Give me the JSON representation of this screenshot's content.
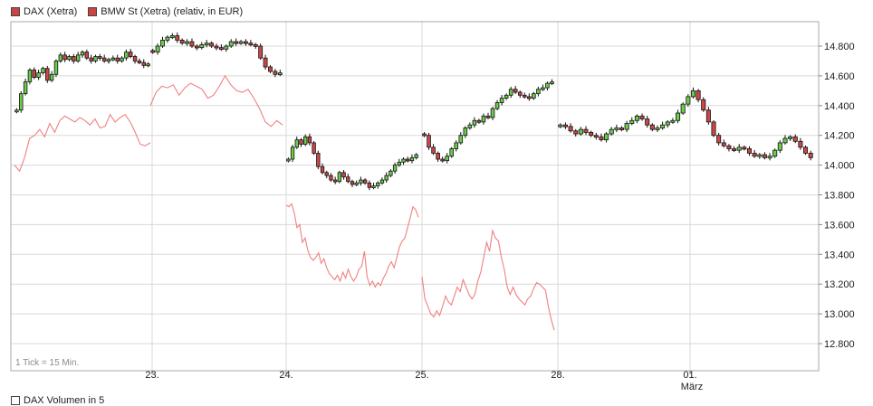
{
  "legend": [
    {
      "name": "DAX (Xetra)",
      "color": "#cc4444"
    },
    {
      "name": "BMW St (Xetra) (relativ, in EUR)",
      "color": "#cc4444"
    }
  ],
  "note": "1 Tick = 15 Min.",
  "bottom_legend": "DAX Volumen in 5",
  "colors": {
    "up": "#6ccc4c",
    "down": "#cc4848",
    "line": "#f08080",
    "grid": "#d8d8d8",
    "frame": "#aaaaaa"
  },
  "chart_data": {
    "type": "line",
    "title": "",
    "xlabel": "",
    "ylabel": "",
    "ylim": [
      12750,
      14950
    ],
    "yticks": [
      "14.800",
      "14.600",
      "14.400",
      "14.200",
      "14.000",
      "13.800",
      "13.600",
      "13.400",
      "13.200",
      "13.000",
      "12.800"
    ],
    "ytick_values": [
      14800,
      14600,
      14400,
      14200,
      14000,
      13800,
      13600,
      13400,
      13200,
      13000,
      12800
    ],
    "days": [
      {
        "label": "23.",
        "sublabel": ""
      },
      {
        "label": "24.",
        "sublabel": ""
      },
      {
        "label": "25.",
        "sublabel": ""
      },
      {
        "label": "28.",
        "sublabel": ""
      },
      {
        "label": "01.",
        "sublabel": "März"
      }
    ],
    "series": [
      {
        "name": "DAX (Xetra)",
        "type": "candlestick",
        "segments": [
          [
            14370,
            14480,
            14560,
            14640,
            14590,
            14620,
            14650,
            14570,
            14610,
            14700,
            14740,
            14710,
            14730,
            14700,
            14740,
            14760,
            14720,
            14700,
            14730,
            14720,
            14700,
            14710,
            14720,
            14700,
            14720,
            14760,
            14730,
            14700,
            14690,
            14670,
            14680
          ],
          [
            14760,
            14800,
            14840,
            14860,
            14870,
            14840,
            14820,
            14830,
            14800,
            14790,
            14810,
            14820,
            14800,
            14790,
            14780,
            14800,
            14830,
            14820,
            14830,
            14820,
            14810,
            14800,
            14720,
            14660,
            14630,
            14610,
            14620
          ],
          [
            14040,
            14120,
            14170,
            14140,
            14190,
            14150,
            14080,
            13990,
            13950,
            13930,
            13900,
            13890,
            13950,
            13920,
            13890,
            13870,
            13880,
            13900,
            13880,
            13850,
            13860,
            13880,
            13900,
            13930,
            13960,
            14000,
            14020,
            14040,
            14030,
            14050,
            14070
          ],
          [
            14200,
            14120,
            14080,
            14040,
            14030,
            14060,
            14110,
            14150,
            14200,
            14250,
            14270,
            14300,
            14290,
            14330,
            14320,
            14380,
            14420,
            14450,
            14470,
            14510,
            14490,
            14470,
            14460,
            14450,
            14480,
            14510,
            14520,
            14550,
            14560
          ],
          [
            14270,
            14260,
            14230,
            14210,
            14240,
            14220,
            14200,
            14190,
            14170,
            14210,
            14240,
            14250,
            14240,
            14280,
            14300,
            14330,
            14310,
            14270,
            14240,
            14250,
            14270,
            14290,
            14300,
            14350,
            14410,
            14460,
            14500,
            14440,
            14370,
            14290,
            14200,
            14150,
            14130,
            14110,
            14100,
            14120,
            14110,
            14080,
            14060,
            14070,
            14050,
            14060,
            14100,
            14150,
            14180,
            14190,
            14160,
            14120,
            14080,
            14050
          ]
        ]
      },
      {
        "name": "BMW St (Xetra) (relativ, in EUR)",
        "type": "line",
        "segments": [
          [
            14000,
            13960,
            14050,
            14180,
            14200,
            14240,
            14190,
            14280,
            14220,
            14300,
            14330,
            14310,
            14290,
            14320,
            14300,
            14270,
            14310,
            14250,
            14260,
            14340,
            14290,
            14320,
            14340,
            14290,
            14220,
            14140,
            14130,
            14150
          ],
          [
            14400,
            14490,
            14530,
            14520,
            14540,
            14470,
            14520,
            14550,
            14530,
            14510,
            14450,
            14470,
            14530,
            14600,
            14540,
            14500,
            14490,
            14510,
            14450,
            14380,
            14290,
            14260,
            14300,
            14270
          ],
          [
            13730,
            13720,
            13740,
            13680,
            13580,
            13600,
            13480,
            13510,
            13430,
            13380,
            13360,
            13380,
            13410,
            13340,
            13370,
            13310,
            13270,
            13250,
            13230,
            13260,
            13220,
            13280,
            13240,
            13300,
            13250,
            13220,
            13250,
            13300,
            13320,
            13420,
            13250,
            13190,
            13220,
            13180,
            13210,
            13190,
            13240,
            13270,
            13320,
            13350,
            13310,
            13380,
            13450,
            13490,
            13510,
            13580,
            13650,
            13720,
            13700,
            13650
          ],
          [
            13250,
            13100,
            13050,
            13000,
            12980,
            13020,
            12990,
            13050,
            13120,
            13080,
            13060,
            13120,
            13180,
            13150,
            13230,
            13180,
            13130,
            13100,
            13130,
            13220,
            13280,
            13380,
            13480,
            13420,
            13560,
            13510,
            13490,
            13380,
            13300,
            13180,
            13130,
            13180,
            13130,
            13100,
            13080,
            13060,
            13100,
            13120,
            13170,
            13210,
            13200,
            13180,
            13160,
            13050,
            12960,
            12890
          ]
        ]
      }
    ]
  }
}
